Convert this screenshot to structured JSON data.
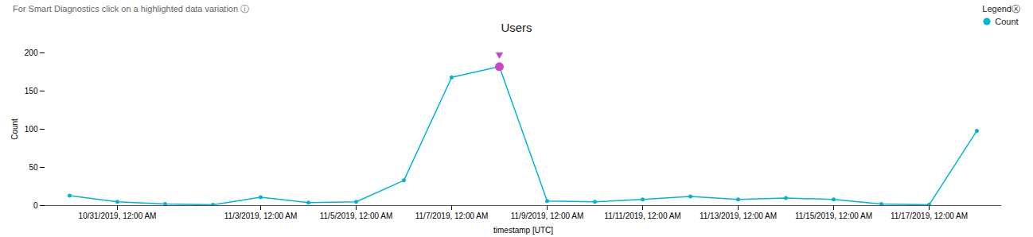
{
  "chart_data": {
    "type": "line",
    "title": "Users",
    "subtitle": "For Smart Diagnostics click on a highlighted data variation",
    "annotations": [
      "ⓘ"
    ],
    "xlabel": "timestamp [UTC]",
    "ylabel": "Count",
    "legend_title": "Legendⓧ",
    "legend": "top-right",
    "grid": false,
    "categories": [
      null,
      "10/31/2019, 12:00 AM",
      null,
      null,
      "11/3/2019, 12:00 AM",
      null,
      "11/5/2019, 12:00 AM",
      null,
      "11/7/2019, 12:00 AM",
      null,
      "11/9/2019, 12:00 AM",
      null,
      "11/11/2019, 12:00 AM",
      null,
      "11/13/2019, 12:00 AM",
      null,
      "11/15/2019, 12:00 AM",
      null,
      "11/17/2019, 12:00 AM",
      null
    ],
    "series": [
      {
        "name": "Count",
        "color": "#00b4d8",
        "marker": "circle",
        "colors": [
          "#00b4d8",
          "#00b4d8",
          "#00b4d8",
          "#00b4d8",
          "#00b4d8",
          "#00b4d8",
          "#00b4d8",
          "#00b4d8",
          "#00b4d8",
          "#cc44cc",
          "#00b4d8",
          "#00b4d8",
          "#00b4d8",
          "#00b4d8",
          "#00b4d8",
          "#00b4d8",
          "#00b4d8",
          "#00b4d8",
          "#00b4d8",
          "#00b4d8"
        ],
        "values": [
          13,
          5,
          2,
          1,
          11,
          4,
          5,
          33,
          168,
          182,
          6,
          5,
          8,
          12,
          8,
          10,
          8,
          2,
          1,
          98
        ]
      }
    ],
    "ylim": [
      0,
      200
    ],
    "yticks": [
      0,
      50,
      100,
      150,
      200
    ]
  }
}
